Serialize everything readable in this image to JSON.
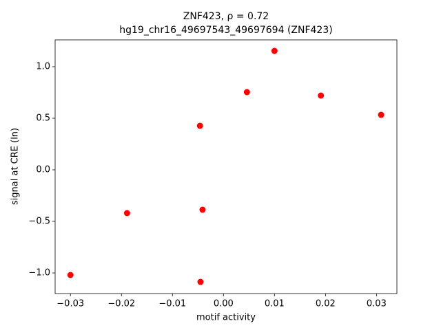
{
  "chart_data": {
    "type": "scatter",
    "title": "ZNF423, ρ = 0.72",
    "subtitle": "hg19_chr16_49697543_49697694 (ZNF423)",
    "x_label": "motif activity",
    "y_label": "signal at CRE (ln)",
    "color": "#ff0000",
    "x": [
      -0.03,
      -0.0189,
      -0.0046,
      -0.0041,
      -0.0045,
      0.0046,
      0.01,
      0.0191,
      0.0309
    ],
    "y": [
      -1.02,
      -0.42,
      0.427,
      -0.387,
      -1.087,
      0.753,
      1.153,
      0.72,
      0.533
    ],
    "xlim": [
      -0.033,
      0.034
    ],
    "ylim": [
      -1.2,
      1.26
    ],
    "xticks": [
      {
        "value": -0.03,
        "label": "−0.03"
      },
      {
        "value": -0.02,
        "label": "−0.02"
      },
      {
        "value": -0.01,
        "label": "−0.01"
      },
      {
        "value": 0,
        "label": "0.00"
      },
      0.01,
      0.02,
      0.03
    ],
    "yticks": [
      {
        "value": -1,
        "label": "−1.0"
      },
      {
        "value": -0.5,
        "label": "−0.5"
      },
      {
        "value": 0,
        "label": "0.0"
      },
      0.5,
      {
        "value": 1,
        "label": "1.0"
      }
    ]
  }
}
